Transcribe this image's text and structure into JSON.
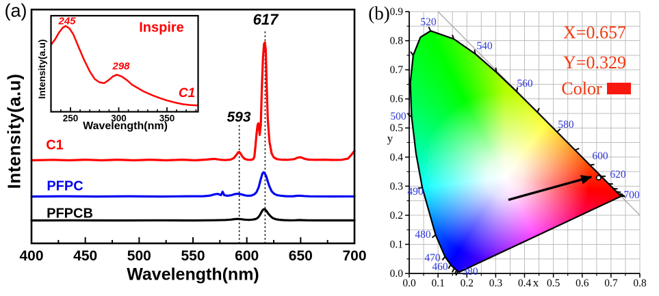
{
  "colors": {
    "c1": "#fe0000",
    "pfpc": "#0202f2",
    "pfpcb": "#000000",
    "annotation_text": "#f2380e",
    "swatch": "#f9180e",
    "wavelength_label": "#2d35d5",
    "grid": "#bdbdbd",
    "diagonal": "#a8a8a8"
  },
  "panel_a": {
    "label": "(a)",
    "y_axis_title": "Intensity(a.u)",
    "x_axis_title": "Wavelength(nm)",
    "series_labels": {
      "c1": "C1",
      "pfpc": "PFPC",
      "pfpcb": "PFPCB"
    },
    "peak_labels": {
      "p593": "593",
      "p617": "617"
    },
    "inset": {
      "title": "Inspire",
      "series_label": "C1",
      "x_axis_title": "Wavelength(nm)",
      "y_axis_title": "Intensity(a.u)",
      "peak_labels": {
        "p245": "245",
        "p298": "298"
      }
    }
  },
  "panel_b": {
    "label": "(b)",
    "annotations": {
      "x_text": "X=0.657",
      "y_text": "Y=0.329",
      "color_text": "Color"
    },
    "x_axis_title": "x",
    "y_axis_title": "y"
  },
  "chart_data": [
    {
      "id": "emission_spectra",
      "type": "line",
      "title": "",
      "xlabel": "Wavelength(nm)",
      "ylabel": "Intensity(a.u)",
      "xlim": [
        400,
        700
      ],
      "xticks": [
        400,
        450,
        500,
        550,
        600,
        650,
        700
      ],
      "minor_tick_step": 25,
      "dotted_lines_nm": [
        593,
        617
      ],
      "series": [
        {
          "name": "C1",
          "color": "#fe0000",
          "peaks_nm": [
            593,
            617,
            650
          ],
          "points": [
            [
              400,
              0
            ],
            [
              420,
              0.004
            ],
            [
              435,
              0
            ],
            [
              450,
              0.005
            ],
            [
              465,
              0
            ],
            [
              480,
              0.005
            ],
            [
              495,
              0
            ],
            [
              510,
              0.005
            ],
            [
              525,
              0
            ],
            [
              540,
              0.005
            ],
            [
              552,
              0
            ],
            [
              562,
              0.006
            ],
            [
              570,
              0.012
            ],
            [
              575,
              0.005
            ],
            [
              580,
              0.002
            ],
            [
              585,
              0.006
            ],
            [
              588,
              0.02
            ],
            [
              590,
              0.042
            ],
            [
              592,
              0.068
            ],
            [
              593,
              0.07
            ],
            [
              594,
              0.06
            ],
            [
              596,
              0.03
            ],
            [
              598,
              0.012
            ],
            [
              601,
              0.004
            ],
            [
              604,
              0.004
            ],
            [
              606,
              0.01
            ],
            [
              607,
              0.03
            ],
            [
              608,
              0.12
            ],
            [
              609,
              0.22
            ],
            [
              610,
              0.3
            ],
            [
              610.8,
              0.314
            ],
            [
              611.5,
              0.26
            ],
            [
              612,
              0.215
            ],
            [
              613,
              0.3
            ],
            [
              614,
              0.62
            ],
            [
              615,
              0.87
            ],
            [
              616,
              0.985
            ],
            [
              616.8,
              1
            ],
            [
              617.6,
              0.93
            ],
            [
              618.5,
              0.62
            ],
            [
              619.5,
              0.35
            ],
            [
              621,
              0.16
            ],
            [
              623,
              0.06
            ],
            [
              625,
              0.025
            ],
            [
              628,
              0.01
            ],
            [
              632,
              0.005
            ],
            [
              638,
              0.004
            ],
            [
              644,
              0.01
            ],
            [
              647,
              0.022
            ],
            [
              650,
              0.026
            ],
            [
              653,
              0.015
            ],
            [
              657,
              0.006
            ],
            [
              663,
              0.004
            ],
            [
              672,
              0.005
            ],
            [
              680,
              0.003
            ],
            [
              688,
              0.004
            ],
            [
              694,
              0.015
            ],
            [
              697,
              0.045
            ],
            [
              700,
              0.08
            ]
          ]
        },
        {
          "name": "PFPC",
          "color": "#0202f2",
          "peaks_nm": [
            578,
            593,
            617
          ],
          "points": [
            [
              400,
              0
            ],
            [
              430,
              0.01
            ],
            [
              460,
              0
            ],
            [
              490,
              0.01
            ],
            [
              520,
              0
            ],
            [
              545,
              0.01
            ],
            [
              560,
              0.015
            ],
            [
              566,
              0.04
            ],
            [
              570,
              0.09
            ],
            [
              573,
              0.11
            ],
            [
              576,
              0.06
            ],
            [
              577.5,
              0.2
            ],
            [
              579,
              0.06
            ],
            [
              582,
              0.03
            ],
            [
              586,
              0.06
            ],
            [
              589,
              0.1
            ],
            [
              592,
              0.115
            ],
            [
              595,
              0.09
            ],
            [
              598,
              0.05
            ],
            [
              601,
              0.03
            ],
            [
              604,
              0.04
            ],
            [
              607,
              0.09
            ],
            [
              609,
              0.18
            ],
            [
              611,
              0.38
            ],
            [
              613,
              0.72
            ],
            [
              614.5,
              0.95
            ],
            [
              615.5,
              1
            ],
            [
              616.5,
              0.97
            ],
            [
              618,
              0.84
            ],
            [
              619.5,
              0.62
            ],
            [
              621,
              0.42
            ],
            [
              623,
              0.22
            ],
            [
              625.5,
              0.11
            ],
            [
              628,
              0.06
            ],
            [
              632,
              0.03
            ],
            [
              637,
              0.012
            ],
            [
              643,
              0.01
            ],
            [
              647,
              0.03
            ],
            [
              650,
              0.035
            ],
            [
              653,
              0.02
            ],
            [
              658,
              0.008
            ],
            [
              665,
              0.006
            ],
            [
              680,
              0.004
            ],
            [
              700,
              0.006
            ]
          ]
        },
        {
          "name": "PFPCB",
          "color": "#000000",
          "peaks_nm": [
            593,
            617
          ],
          "points": [
            [
              400,
              0
            ],
            [
              440,
              0.01
            ],
            [
              480,
              0
            ],
            [
              520,
              0.01
            ],
            [
              550,
              0
            ],
            [
              570,
              0.02
            ],
            [
              580,
              0.04
            ],
            [
              585,
              0.07
            ],
            [
              589,
              0.12
            ],
            [
              592,
              0.14
            ],
            [
              595,
              0.11
            ],
            [
              598,
              0.07
            ],
            [
              602,
              0.05
            ],
            [
              605,
              0.07
            ],
            [
              608,
              0.12
            ],
            [
              610,
              0.22
            ],
            [
              612,
              0.45
            ],
            [
              613.5,
              0.72
            ],
            [
              615,
              0.95
            ],
            [
              616,
              1
            ],
            [
              617,
              0.97
            ],
            [
              618.5,
              0.82
            ],
            [
              620,
              0.6
            ],
            [
              622,
              0.38
            ],
            [
              624,
              0.22
            ],
            [
              627,
              0.11
            ],
            [
              630,
              0.06
            ],
            [
              634,
              0.03
            ],
            [
              640,
              0.015
            ],
            [
              645,
              0.02
            ],
            [
              649,
              0.035
            ],
            [
              652,
              0.025
            ],
            [
              657,
              0.012
            ],
            [
              665,
              0.008
            ],
            [
              680,
              0.006
            ],
            [
              700,
              0.008
            ]
          ]
        }
      ]
    },
    {
      "id": "excitation_inset",
      "type": "line",
      "title": "Inspire",
      "xlabel": "Wavelength(nm)",
      "ylabel": "Intensity(a.u)",
      "xlim": [
        230,
        382
      ],
      "xticks": [
        250,
        300,
        350
      ],
      "minor_tick_step": 10,
      "series": [
        {
          "name": "C1",
          "color": "#fe0000",
          "peaks_nm": [
            245,
            298
          ],
          "points": [
            [
              230,
              0.78
            ],
            [
              234,
              0.84
            ],
            [
              238,
              0.92
            ],
            [
              242,
              0.98
            ],
            [
              245,
              1
            ],
            [
              249,
              0.97
            ],
            [
              253,
              0.9
            ],
            [
              258,
              0.76
            ],
            [
              264,
              0.6
            ],
            [
              270,
              0.46
            ],
            [
              275,
              0.37
            ],
            [
              280,
              0.33
            ],
            [
              285,
              0.32
            ],
            [
              290,
              0.36
            ],
            [
              294,
              0.4
            ],
            [
              298,
              0.42
            ],
            [
              303,
              0.4
            ],
            [
              308,
              0.36
            ],
            [
              314,
              0.3
            ],
            [
              320,
              0.26
            ],
            [
              326,
              0.22
            ],
            [
              334,
              0.18
            ],
            [
              342,
              0.145
            ],
            [
              350,
              0.115
            ],
            [
              358,
              0.09
            ],
            [
              366,
              0.07
            ],
            [
              374,
              0.06
            ],
            [
              382,
              0.055
            ]
          ]
        }
      ]
    },
    {
      "id": "cie_1931_chromaticity",
      "type": "scatter",
      "xlabel": "x",
      "ylabel": "y",
      "xlim": [
        0,
        0.8
      ],
      "ylim": [
        0,
        0.9
      ],
      "xticks": [
        "0.0",
        "0.1",
        "0.2",
        "0.3",
        "0.4",
        "0.5",
        "0.6",
        "0.7",
        "0.8"
      ],
      "yticks": [
        "0.0",
        "0.1",
        "0.2",
        "0.3",
        "0.4",
        "0.5",
        "0.6",
        "0.7",
        "0.8",
        "0.9"
      ],
      "grid_step": 0.05,
      "points": [
        {
          "x": 0.657,
          "y": 0.329
        }
      ],
      "arrow": {
        "from": [
          0.344,
          0.253
        ],
        "to": [
          0.632,
          0.332
        ]
      },
      "diagonal_line": {
        "from": [
          0.1,
          0.9
        ],
        "to": [
          0.8,
          0.2
        ]
      },
      "wavelength_labels": [
        {
          "nm": "380",
          "x": 0.2113,
          "y": 0.007
        },
        {
          "nm": "460",
          "x": 0.1068,
          "y": 0.0235
        },
        {
          "nm": "470",
          "x": 0.0807,
          "y": 0.054
        },
        {
          "nm": "480",
          "x": 0.0475,
          "y": 0.134
        },
        {
          "nm": "490",
          "x": 0.0214,
          "y": 0.282
        },
        {
          "nm": "500",
          "x": -0.038,
          "y": 0.5405
        },
        {
          "nm": "520",
          "x": 0.0665,
          "y": 0.8648
        },
        {
          "nm": "540",
          "x": 0.2611,
          "y": 0.7825
        },
        {
          "nm": "560",
          "x": 0.4012,
          "y": 0.6533
        },
        {
          "nm": "580",
          "x": 0.5436,
          "y": 0.5123
        },
        {
          "nm": "600",
          "x": 0.6623,
          "y": 0.4042
        },
        {
          "nm": "620",
          "x": 0.724,
          "y": 0.3408
        },
        {
          "nm": "700",
          "x": 0.7715,
          "y": 0.2703
        }
      ],
      "locus_tick_nm": [
        430,
        440,
        450,
        460,
        470,
        480,
        490,
        500,
        510,
        520,
        530,
        540,
        550,
        560,
        570,
        580,
        590,
        600,
        610,
        620,
        630,
        640,
        650,
        660,
        670,
        680
      ],
      "spectral_locus": [
        [
          380,
          0.1741,
          0.005
        ],
        [
          430,
          0.1689,
          0.0069
        ],
        [
          440,
          0.1644,
          0.0109
        ],
        [
          450,
          0.1566,
          0.0177
        ],
        [
          460,
          0.144,
          0.0297
        ],
        [
          470,
          0.1241,
          0.0578
        ],
        [
          480,
          0.0913,
          0.1327
        ],
        [
          490,
          0.0454,
          0.295
        ],
        [
          495,
          0.0235,
          0.4127
        ],
        [
          500,
          0.0082,
          0.5384
        ],
        [
          505,
          0.0039,
          0.6548
        ],
        [
          510,
          0.0139,
          0.7502
        ],
        [
          515,
          0.0389,
          0.812
        ],
        [
          520,
          0.0743,
          0.8338
        ],
        [
          530,
          0.1547,
          0.8059
        ],
        [
          540,
          0.2296,
          0.7543
        ],
        [
          550,
          0.3016,
          0.6923
        ],
        [
          560,
          0.3731,
          0.6245
        ],
        [
          570,
          0.4441,
          0.5547
        ],
        [
          580,
          0.5125,
          0.4866
        ],
        [
          590,
          0.5752,
          0.4242
        ],
        [
          600,
          0.627,
          0.3725
        ],
        [
          610,
          0.6658,
          0.334
        ],
        [
          620,
          0.6915,
          0.3083
        ],
        [
          630,
          0.7079,
          0.292
        ],
        [
          640,
          0.719,
          0.2809
        ],
        [
          650,
          0.726,
          0.274
        ],
        [
          660,
          0.73,
          0.27
        ],
        [
          670,
          0.732,
          0.268
        ],
        [
          680,
          0.7334,
          0.2666
        ],
        [
          700,
          0.7347,
          0.2653
        ]
      ]
    }
  ]
}
